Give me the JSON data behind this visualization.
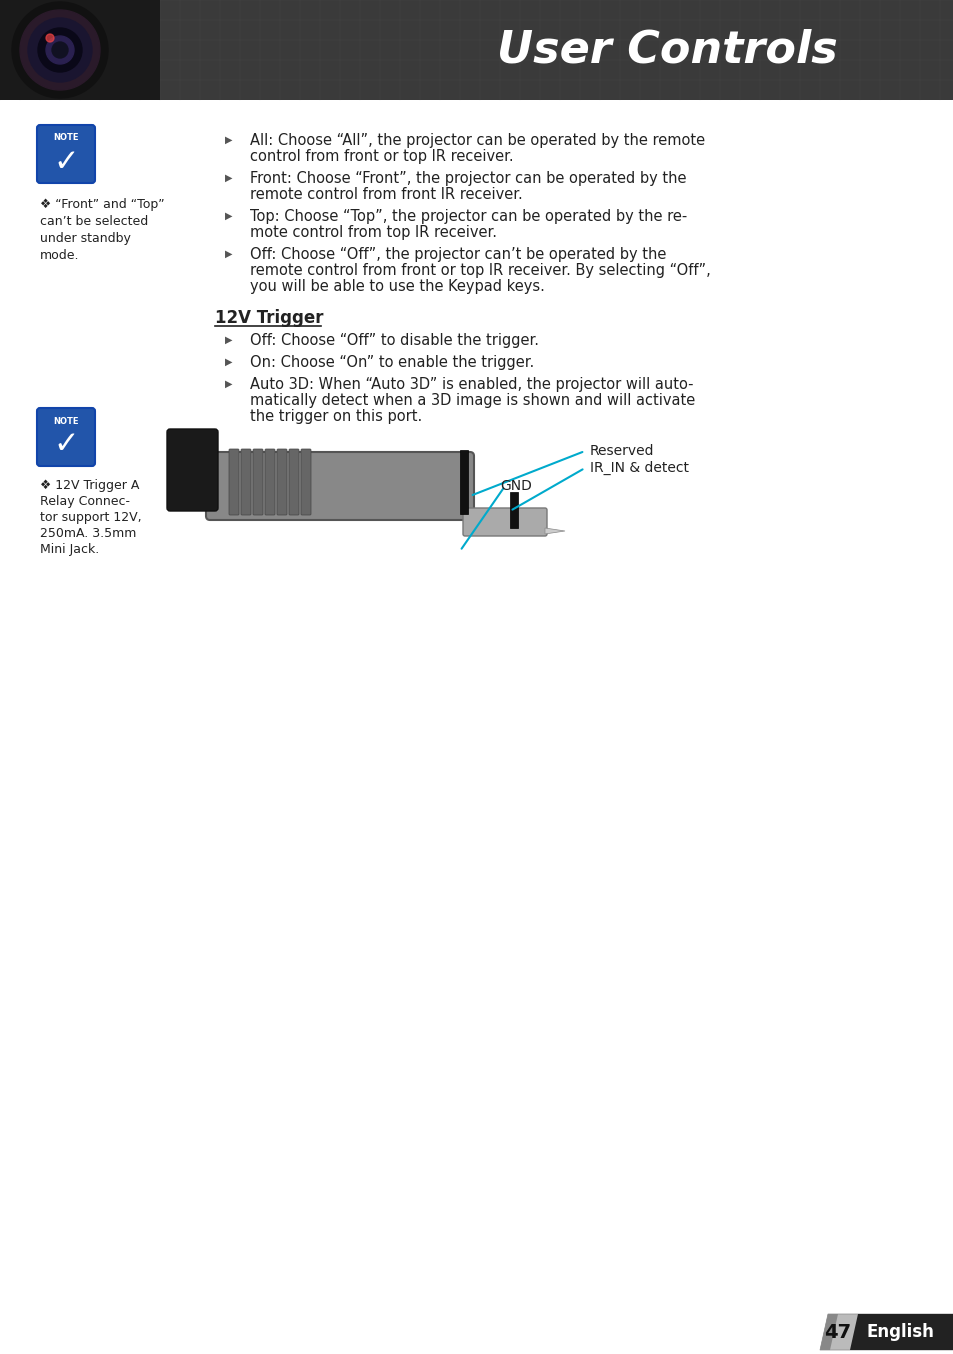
{
  "title": "User Controls",
  "title_color": "#FFFFFF",
  "header_bg_color": "#4a4a4a",
  "page_bg_color": "#FFFFFF",
  "page_number": "47",
  "page_label": "English",
  "bullet_char": "▶",
  "bullet_color": "#555555",
  "note_icon_bg": "#2255aa",
  "note_text_color": "#333333",
  "sidebar_note1_lines": [
    "❖ “Front” and “Top”",
    "can’t be selected",
    "under standby",
    "mode."
  ],
  "sidebar_note2_lines": [
    "❖ 12V Trigger A",
    "Relay Connec-",
    "tor support 12V,",
    "250mA. 3.5mm",
    "Mini Jack."
  ],
  "bullet_items": [
    "All: Choose “All”, the projector can be operated by the remote\ncontrol from front or top IR receiver.",
    "Front: Choose “Front”, the projector can be operated by the\nremote control from front IR receiver.",
    "Top: Choose “Top”, the projector can be operated by the re-\nmote control from top IR receiver.",
    "Off: Choose “Off”, the projector can’t be operated by the\nremote control from front or top IR receiver. By selecting “Off”,\nyou will be able to use the Keypad keys."
  ],
  "section_heading": "12V Trigger",
  "section_items": [
    "Off: Choose “Off” to disable the trigger.",
    "On: Choose “On” to enable the trigger.",
    "Auto 3D: When “Auto 3D” is enabled, the projector will auto-\nmatically detect when a 3D image is shown and will activate\nthe trigger on this port."
  ],
  "connector_labels": [
    "Reserved",
    "IR_IN & detect",
    "GND"
  ],
  "connector_label_color": "#222222",
  "connector_line_color": "#00AACC",
  "text_color": "#222222",
  "heading_underline": true
}
